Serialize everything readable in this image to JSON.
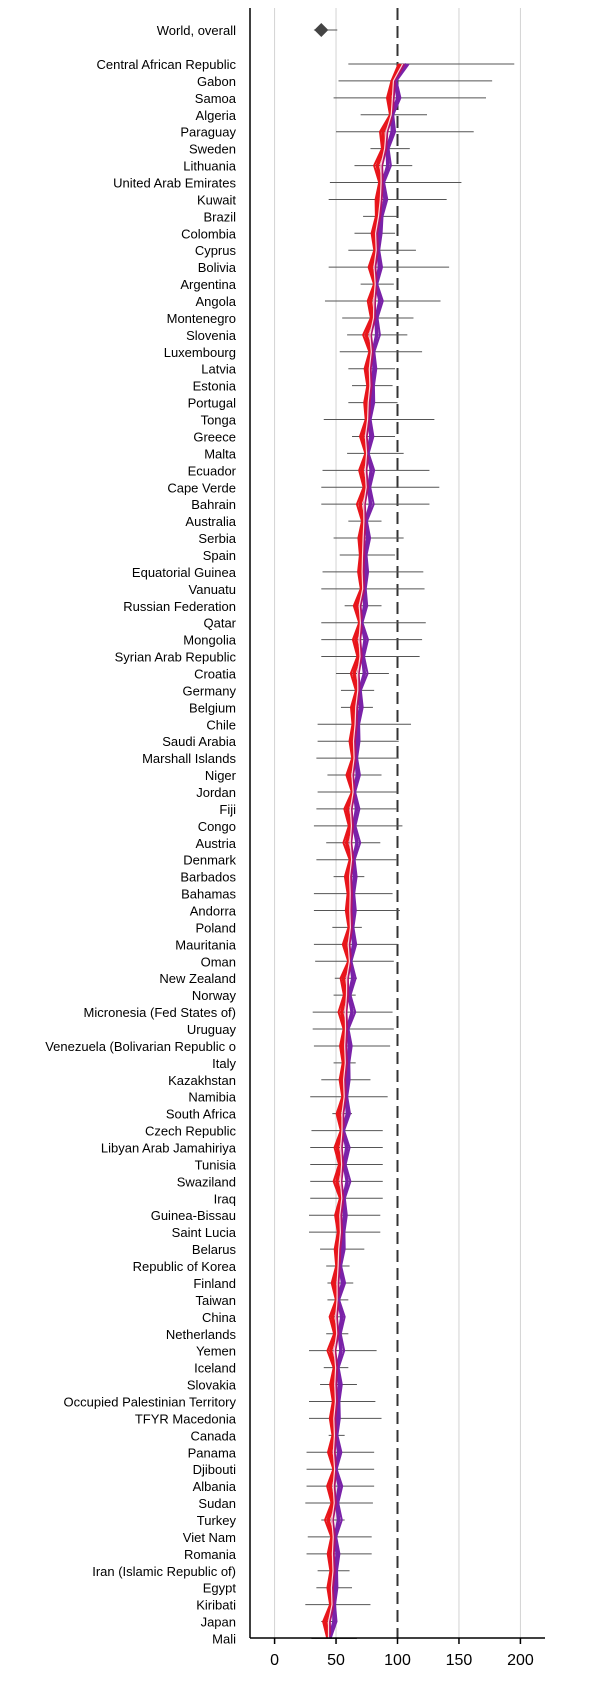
{
  "colors": {
    "grid": "#d3d3d3",
    "axis": "#000000",
    "ci": "#555555",
    "ref_line": "#333333",
    "marker": "#444444",
    "band_outer": "#e8151b",
    "band_mid": "#b0126a",
    "band_inner": "#7a22a8",
    "band_highlight": "#ffd9d9"
  },
  "chart_data": {
    "type": "forest",
    "xlim": [
      -20,
      220
    ],
    "xticks": [
      0,
      50,
      100,
      150,
      200
    ],
    "reference_line": 100,
    "grid": true,
    "overall": {
      "label": "World, overall",
      "value": 38,
      "lower": 32,
      "upper": 51
    },
    "categories": [
      "Central African Republic",
      "Gabon",
      "Samoa",
      "Algeria",
      "Paraguay",
      "Sweden",
      "Lithuania",
      "United Arab Emirates",
      "Kuwait",
      "Brazil",
      "Colombia",
      "Cyprus",
      "Bolivia",
      "Argentina",
      "Angola",
      "Montenegro",
      "Slovenia",
      "Luxembourg",
      "Latvia",
      "Estonia",
      "Portugal",
      "Tonga",
      "Greece",
      "Malta",
      "Ecuador",
      "Cape Verde",
      "Bahrain",
      "Australia",
      "Serbia",
      "Spain",
      "Equatorial Guinea",
      "Vanuatu",
      "Russian Federation",
      "Qatar",
      "Mongolia",
      "Syrian Arab Republic",
      "Croatia",
      "Germany",
      "Belgium",
      "Chile",
      "Saudi Arabia",
      "Marshall Islands",
      "Niger",
      "Jordan",
      "Fiji",
      "Congo",
      "Austria",
      "Denmark",
      "Barbados",
      "Bahamas",
      "Andorra",
      "Poland",
      "Mauritania",
      "Oman",
      "New Zealand",
      "Norway",
      "Micronesia (Fed  States of)",
      "Uruguay",
      "Venezuela (Bolivarian Republic o",
      "Italy",
      "Kazakhstan",
      "Namibia",
      "South Africa",
      "Czech Republic",
      "Libyan Arab Jamahiriya",
      "Tunisia",
      "Swaziland",
      "Iraq",
      "Guinea-Bissau",
      "Saint Lucia",
      "Belarus",
      "Republic of Korea",
      "Finland",
      "Taiwan",
      "China",
      "Netherlands",
      "Yemen",
      "Iceland",
      "Slovakia",
      "Occupied Palestinian Territory",
      "TFYR Macedonia",
      "Canada",
      "Panama",
      "Djibouti",
      "Albania",
      "Sudan",
      "Turkey",
      "Viet Nam",
      "Romania",
      "Iran (Islamic Republic of)",
      "Egypt",
      "Kiribati",
      "Japan",
      "Mali"
    ],
    "values": [
      105,
      97,
      97,
      95,
      92,
      90,
      88,
      87,
      87,
      85,
      83,
      83,
      82,
      82,
      82,
      81,
      79,
      79,
      78,
      78,
      77,
      76,
      75,
      75,
      75,
      75,
      74,
      73,
      73,
      72,
      72,
      72,
      70,
      70,
      70,
      70,
      69,
      68,
      67,
      66,
      65,
      65,
      64,
      64,
      63,
      63,
      63,
      63,
      62,
      62,
      62,
      62,
      61,
      61,
      60,
      59,
      59,
      58,
      58,
      58,
      57,
      57,
      56,
      55,
      55,
      55,
      55,
      55,
      54,
      54,
      53,
      52,
      52,
      51,
      51,
      51,
      50,
      50,
      50,
      50,
      49,
      49,
      49,
      49,
      49,
      49,
      48,
      48,
      48,
      48,
      47,
      47,
      45,
      44
    ],
    "lower": [
      60,
      52,
      48,
      70,
      50,
      78,
      65,
      45,
      44,
      72,
      65,
      60,
      44,
      70,
      41,
      55,
      59,
      53,
      60,
      63,
      60,
      40,
      63,
      59,
      39,
      38,
      38,
      60,
      48,
      53,
      39,
      38,
      57,
      38,
      38,
      38,
      50,
      54,
      54,
      35,
      35,
      34,
      43,
      35,
      34,
      32,
      42,
      34,
      48,
      32,
      32,
      47,
      32,
      33,
      49,
      48,
      31,
      31,
      32,
      48,
      38,
      29,
      47,
      30,
      29,
      29,
      29,
      29,
      28,
      28,
      37,
      42,
      43,
      43,
      45,
      42,
      28,
      40,
      37,
      28,
      28,
      44,
      26,
      26,
      26,
      25,
      38,
      27,
      26,
      35,
      34,
      25,
      38,
      30
    ],
    "upper": [
      195,
      177,
      172,
      124,
      162,
      110,
      112,
      152,
      140,
      100,
      98,
      115,
      142,
      97,
      135,
      113,
      108,
      120,
      98,
      96,
      100,
      130,
      98,
      105,
      126,
      134,
      126,
      87,
      105,
      98,
      121,
      122,
      87,
      123,
      120,
      118,
      93,
      81,
      80,
      111,
      101,
      101,
      87,
      100,
      99,
      104,
      86,
      99,
      73,
      96,
      102,
      71,
      100,
      97,
      67,
      66,
      96,
      97,
      94,
      66,
      78,
      92,
      63,
      88,
      88,
      88,
      88,
      88,
      86,
      86,
      73,
      61,
      64,
      60,
      57,
      60,
      83,
      60,
      67,
      82,
      87,
      57,
      81,
      81,
      81,
      80,
      57,
      79,
      79,
      61,
      63,
      78,
      51,
      67
    ]
  }
}
